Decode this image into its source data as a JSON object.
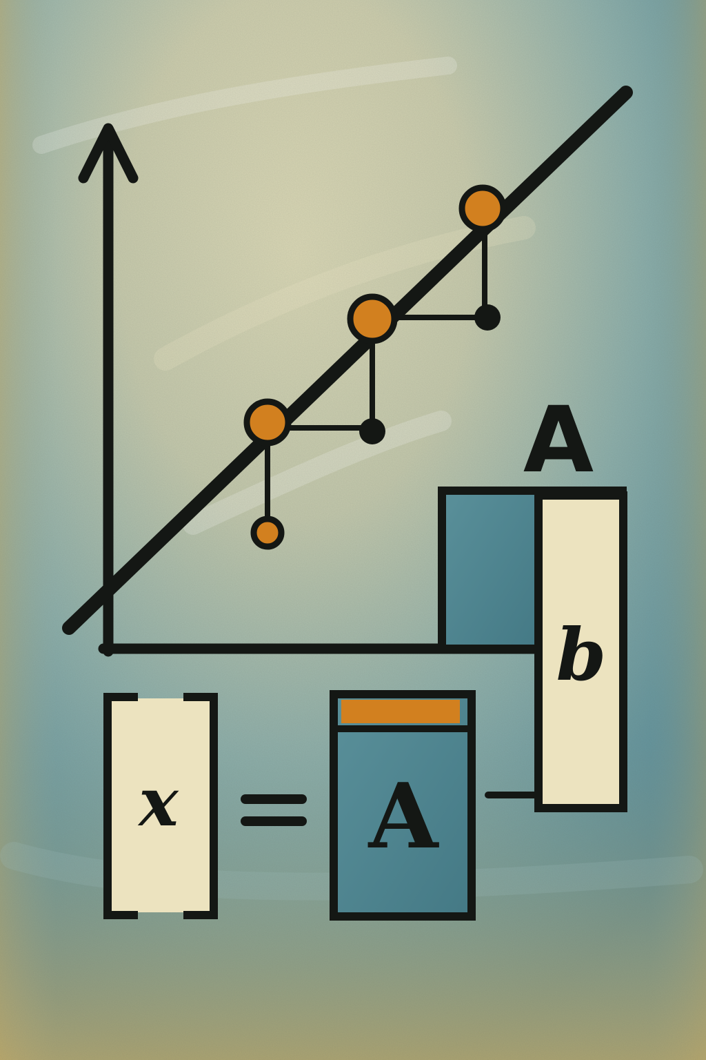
{
  "labels": {
    "matrix_top": "A",
    "vector_b": "b",
    "vector_x": "x",
    "matrix_a": "A"
  },
  "colors": {
    "ink": "#141714",
    "orange": "#d2801f",
    "cream": "#ece3bf",
    "teal": "#4e8794",
    "teal_dark": "#3f7582",
    "ochre": "#c7ae6a"
  }
}
